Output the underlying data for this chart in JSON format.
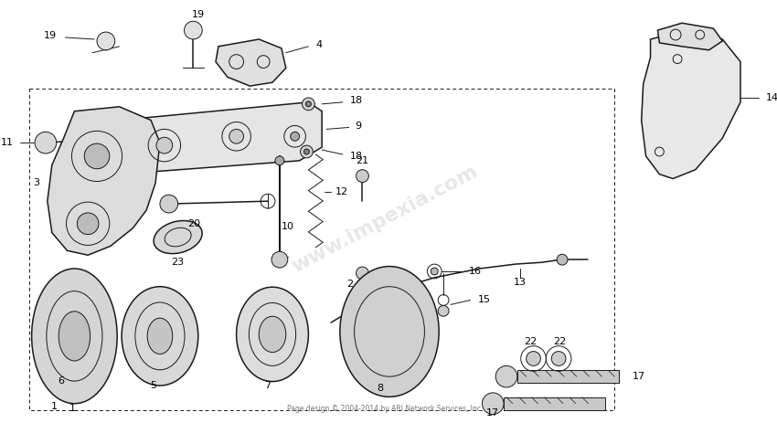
{
  "background_color": "#ffffff",
  "line_color": "#1a1a1a",
  "text_color": "#000000",
  "watermark_text": "www.impexia.com",
  "watermark_color": "#bbbbbb",
  "watermark_alpha": 0.35,
  "footer_text": "Page design © 2004-2014 by ARI Network Services, Inc.",
  "fig_width": 8.5,
  "fig_height": 4.63,
  "dpi": 100
}
